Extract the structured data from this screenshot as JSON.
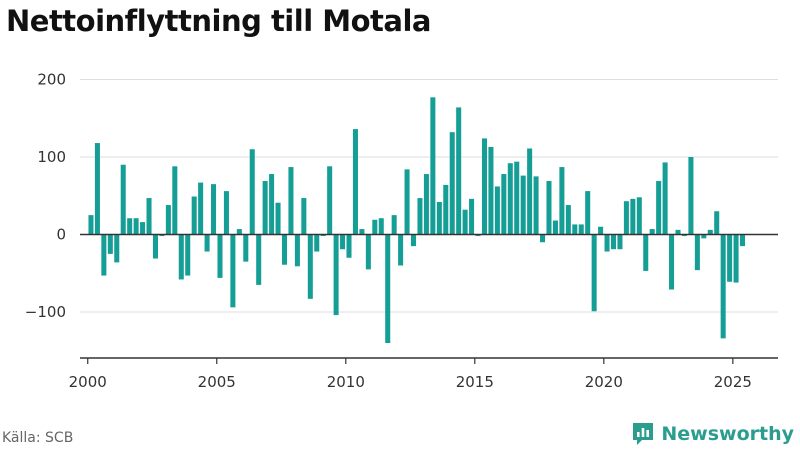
{
  "title": "Nettoinflyttning till Motala",
  "source": "Källa: SCB",
  "brand": {
    "name": "Newsworthy",
    "icon": "newsworthy-logo-icon"
  },
  "colors": {
    "bar": "#149e96",
    "grid": "#dddddd",
    "zero_line": "#333333",
    "axis": "#333333",
    "brand": "#2a9d8f"
  },
  "chart_data": {
    "type": "bar",
    "title": "Nettoinflyttning till Motala",
    "xlabel": "",
    "ylabel": "",
    "ylim": [
      -160,
      200
    ],
    "yticks": [
      200,
      100,
      0,
      -100
    ],
    "ytick_labels": [
      "200",
      "100",
      "0",
      "−100"
    ],
    "xlim": [
      1999.7,
      2026.75
    ],
    "xticks": [
      2000,
      2005,
      2010,
      2015,
      2020,
      2025
    ],
    "xtick_labels": [
      "2000",
      "2005",
      "2010",
      "2015",
      "2020",
      "2025"
    ],
    "grid": true,
    "series": [
      {
        "frequency": "quarterly",
        "start": "2000 Q1",
        "values": [
          25,
          118,
          -53,
          -25,
          -36,
          90,
          21,
          21,
          16,
          47,
          -31,
          -2,
          38,
          88,
          -58,
          -53,
          49,
          67,
          -22,
          65,
          -56,
          56,
          -94,
          7,
          -35,
          110,
          -65,
          69,
          78,
          41,
          -39,
          87,
          -41,
          47,
          -83,
          -22,
          -2,
          88,
          -104,
          -19,
          -30,
          136,
          7,
          -45,
          19,
          21,
          -140,
          25,
          -40,
          84,
          -15,
          47,
          78,
          177,
          42,
          64,
          132,
          164,
          32,
          46,
          -2,
          124,
          113,
          62,
          78,
          92,
          94,
          76,
          111,
          75,
          -10,
          69,
          18,
          87,
          38,
          13,
          13,
          56,
          -99,
          10,
          -22,
          -19,
          -19,
          43,
          46,
          48,
          -47,
          7,
          69,
          93,
          -71,
          6,
          -2,
          100,
          -46,
          -5,
          6,
          30,
          -134,
          -61,
          -62,
          -15
        ]
      }
    ]
  }
}
